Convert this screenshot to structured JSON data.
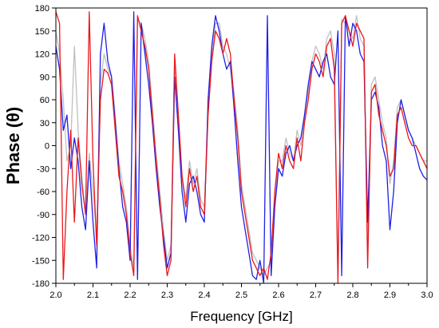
{
  "chart_data": {
    "type": "line",
    "xlabel": "Frequency [GHz]",
    "ylabel": "Phase (θ)",
    "xlim": [
      2.0,
      3.0
    ],
    "ylim": [
      -180,
      180
    ],
    "xticks": [
      2.0,
      2.1,
      2.2,
      2.3,
      2.4,
      2.5,
      2.6,
      2.7,
      2.8,
      2.9,
      3.0
    ],
    "xtick_labels": [
      "2.0",
      "2.1",
      "2.2",
      "2.3",
      "2.4",
      "2.5",
      "2.6",
      "2.7",
      "2.8",
      "2.9",
      "3.0"
    ],
    "yticks": [
      -180,
      -150,
      -120,
      -90,
      -60,
      -30,
      0,
      30,
      60,
      90,
      120,
      150,
      180
    ],
    "ytick_labels": [
      "-180",
      "-150",
      "-120",
      "-90",
      "-60",
      "-30",
      "0",
      "30",
      "60",
      "90",
      "120",
      "150",
      "180"
    ],
    "grid": false,
    "series": [
      {
        "color": "#e8191c",
        "x": [
          2.0,
          2.01,
          2.02,
          2.03,
          2.04,
          2.05,
          2.06,
          2.07,
          2.08,
          2.09,
          2.1,
          2.11,
          2.12,
          2.13,
          2.14,
          2.15,
          2.16,
          2.17,
          2.18,
          2.19,
          2.2,
          2.21,
          2.22,
          2.23,
          2.24,
          2.25,
          2.26,
          2.27,
          2.28,
          2.29,
          2.3,
          2.31,
          2.32,
          2.33,
          2.34,
          2.35,
          2.36,
          2.37,
          2.38,
          2.39,
          2.4,
          2.41,
          2.42,
          2.43,
          2.44,
          2.45,
          2.46,
          2.47,
          2.48,
          2.49,
          2.5,
          2.51,
          2.52,
          2.53,
          2.54,
          2.55,
          2.56,
          2.57,
          2.58,
          2.59,
          2.6,
          2.61,
          2.62,
          2.63,
          2.64,
          2.65,
          2.66,
          2.67,
          2.68,
          2.69,
          2.7,
          2.71,
          2.72,
          2.73,
          2.74,
          2.75,
          2.76,
          2.77,
          2.78,
          2.79,
          2.8,
          2.81,
          2.82,
          2.83,
          2.84,
          2.85,
          2.86,
          2.87,
          2.88,
          2.89,
          2.9,
          2.91,
          2.92,
          2.93,
          2.94,
          2.95,
          2.96,
          2.97,
          2.98,
          2.99,
          3.0
        ],
        "y": [
          175,
          160,
          -175,
          -60,
          20,
          -100,
          10,
          -50,
          -90,
          175,
          -20,
          -130,
          60,
          100,
          95,
          80,
          20,
          -40,
          -60,
          -90,
          -140,
          -170,
          170,
          150,
          130,
          100,
          40,
          -20,
          -70,
          -130,
          -170,
          -150,
          120,
          40,
          -40,
          -80,
          -30,
          -60,
          -40,
          -80,
          -90,
          40,
          110,
          150,
          140,
          120,
          140,
          120,
          60,
          10,
          -60,
          -90,
          -120,
          -150,
          -160,
          -170,
          -160,
          -175,
          -140,
          -60,
          -10,
          -30,
          0,
          -20,
          -30,
          10,
          -20,
          30,
          60,
          100,
          120,
          110,
          90,
          130,
          140,
          100,
          -180,
          160,
          170,
          150,
          130,
          160,
          150,
          140,
          -160,
          70,
          80,
          40,
          20,
          0,
          -40,
          -30,
          40,
          50,
          30,
          10,
          0,
          0,
          -10,
          -20,
          -30
        ]
      },
      {
        "color": "#1f1fe8",
        "x": [
          2.0,
          2.01,
          2.02,
          2.03,
          2.04,
          2.05,
          2.06,
          2.07,
          2.08,
          2.09,
          2.1,
          2.11,
          2.12,
          2.13,
          2.14,
          2.15,
          2.16,
          2.17,
          2.18,
          2.19,
          2.2,
          2.21,
          2.22,
          2.23,
          2.24,
          2.25,
          2.26,
          2.27,
          2.28,
          2.29,
          2.3,
          2.31,
          2.32,
          2.33,
          2.34,
          2.35,
          2.36,
          2.37,
          2.38,
          2.39,
          2.4,
          2.41,
          2.42,
          2.43,
          2.44,
          2.45,
          2.46,
          2.47,
          2.48,
          2.49,
          2.5,
          2.51,
          2.52,
          2.53,
          2.54,
          2.55,
          2.56,
          2.57,
          2.58,
          2.59,
          2.6,
          2.61,
          2.62,
          2.63,
          2.64,
          2.65,
          2.66,
          2.67,
          2.68,
          2.69,
          2.7,
          2.71,
          2.72,
          2.73,
          2.74,
          2.75,
          2.76,
          2.77,
          2.78,
          2.79,
          2.8,
          2.81,
          2.82,
          2.83,
          2.84,
          2.85,
          2.86,
          2.87,
          2.88,
          2.89,
          2.9,
          2.91,
          2.92,
          2.93,
          2.94,
          2.95,
          2.96,
          2.97,
          2.98,
          2.99,
          3.0
        ],
        "y": [
          130,
          100,
          20,
          40,
          -30,
          10,
          -20,
          -80,
          -110,
          -20,
          -100,
          -160,
          120,
          160,
          110,
          90,
          30,
          -30,
          -80,
          -100,
          -150,
          175,
          -175,
          160,
          120,
          80,
          30,
          -30,
          -80,
          -120,
          -160,
          -140,
          90,
          20,
          -60,
          -100,
          -50,
          -40,
          -60,
          -90,
          -100,
          60,
          130,
          170,
          150,
          120,
          100,
          110,
          50,
          -20,
          -80,
          -110,
          -140,
          -170,
          -175,
          -150,
          -180,
          170,
          -170,
          -80,
          -30,
          -40,
          -10,
          0,
          -20,
          0,
          10,
          40,
          80,
          110,
          100,
          90,
          110,
          120,
          90,
          80,
          150,
          -170,
          170,
          130,
          160,
          150,
          120,
          110,
          -100,
          60,
          70,
          50,
          0,
          -20,
          -110,
          -60,
          30,
          60,
          40,
          20,
          10,
          -10,
          -30,
          -40,
          -45
        ]
      },
      {
        "color": "#c0c0c4",
        "x": [
          2.0,
          2.01,
          2.02,
          2.03,
          2.04,
          2.05,
          2.06,
          2.07,
          2.08,
          2.09,
          2.1,
          2.11,
          2.12,
          2.13,
          2.14,
          2.15,
          2.16,
          2.17,
          2.18,
          2.19,
          2.2,
          2.21,
          2.22,
          2.23,
          2.24,
          2.25,
          2.26,
          2.27,
          2.28,
          2.29,
          2.3,
          2.31,
          2.32,
          2.33,
          2.34,
          2.35,
          2.36,
          2.37,
          2.38,
          2.39,
          2.4,
          2.41,
          2.42,
          2.43,
          2.44,
          2.45,
          2.46,
          2.47,
          2.48,
          2.49,
          2.5,
          2.51,
          2.52,
          2.53,
          2.54,
          2.55,
          2.56,
          2.57,
          2.58,
          2.59,
          2.6,
          2.61,
          2.62,
          2.63,
          2.64,
          2.65,
          2.66,
          2.67,
          2.68,
          2.69,
          2.7,
          2.71,
          2.72,
          2.73,
          2.74,
          2.75,
          2.76,
          2.77,
          2.78,
          2.79,
          2.8,
          2.81,
          2.82,
          2.83,
          2.84,
          2.85,
          2.86,
          2.87,
          2.88,
          2.89,
          2.9,
          2.91,
          2.92,
          2.93,
          2.94,
          2.95,
          2.96,
          2.97,
          2.98,
          2.99,
          3.0
        ],
        "y": [
          150,
          120,
          60,
          -20,
          0,
          130,
          20,
          -40,
          -90,
          -10,
          -60,
          -120,
          80,
          120,
          100,
          90,
          40,
          -20,
          -50,
          -80,
          -130,
          -160,
          165,
          160,
          140,
          110,
          50,
          -10,
          -60,
          -110,
          -150,
          -130,
          110,
          30,
          -40,
          -70,
          -20,
          -50,
          -30,
          -70,
          -80,
          50,
          120,
          160,
          160,
          130,
          120,
          100,
          70,
          20,
          -50,
          -80,
          -110,
          -140,
          -150,
          -160,
          -170,
          -160,
          -150,
          -70,
          -20,
          -20,
          10,
          -10,
          -20,
          20,
          0,
          40,
          70,
          110,
          130,
          120,
          100,
          140,
          150,
          120,
          -175,
          165,
          160,
          150,
          140,
          170,
          140,
          130,
          -130,
          80,
          90,
          60,
          30,
          10,
          -50,
          -20,
          50,
          60,
          40,
          20,
          10,
          0,
          -10,
          -20,
          -20
        ]
      }
    ]
  }
}
